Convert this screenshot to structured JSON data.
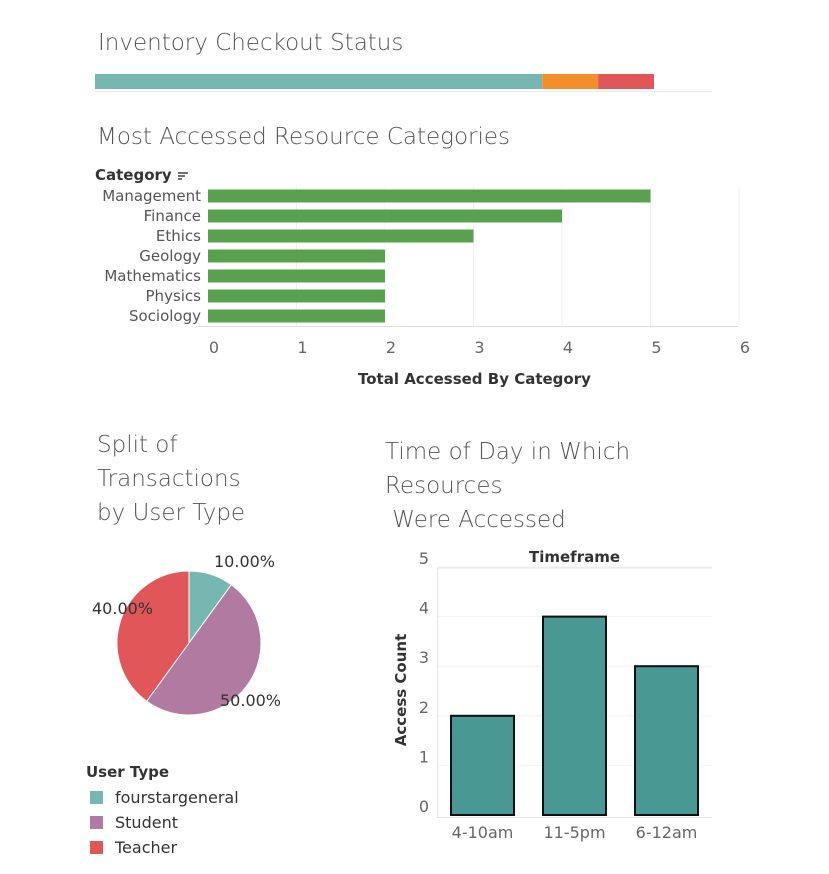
{
  "colors": {
    "teal": "#76b7b2",
    "orange": "#f28e2b",
    "red": "#e15759",
    "purple": "#b07aa1",
    "green": "#59a14f",
    "dark_teal": "#499894"
  },
  "inventory": {
    "title": "Inventory Checkout Status",
    "segments": [
      {
        "value": 0.8,
        "color": "#76b7b2"
      },
      {
        "value": 0.1,
        "color": "#f28e2b"
      },
      {
        "value": 0.1,
        "color": "#e15759"
      }
    ]
  },
  "categories_chart": {
    "title": "Most Accessed Resource Categories",
    "header": "Category",
    "xlabel": "Total Accessed By Category"
  },
  "pie": {
    "title_lines": [
      "Split of",
      "Transactions",
      "by User Type"
    ],
    "legend_title": "User Type"
  },
  "time_chart": {
    "title_lines": [
      "Time of Day in Which",
      "Resources",
      " Were Accessed"
    ],
    "header": "Timeframe",
    "ylabel": "Access Count"
  },
  "chart_data": [
    {
      "type": "bar",
      "orientation": "horizontal",
      "title": "Most Accessed Resource Categories",
      "categories": [
        "Management",
        "Finance",
        "Ethics",
        "Geology",
        "Mathematics",
        "Physics",
        "Sociology"
      ],
      "values": [
        5,
        4,
        3,
        2,
        2,
        2,
        2
      ],
      "xlabel": "Total Accessed By Category",
      "ylabel": "Category",
      "xlim": [
        0,
        6
      ],
      "xticks": [
        "0",
        "1",
        "2",
        "3",
        "4",
        "5",
        "6"
      ],
      "color": "#59a14f"
    },
    {
      "type": "pie",
      "title": "Split of Transactions by User Type",
      "labels": [
        "fourstargeneral",
        "Student",
        "Teacher"
      ],
      "values": [
        10,
        50,
        40
      ],
      "value_labels": [
        "10.00%",
        "50.00%",
        "40.00%"
      ],
      "colors": [
        "#76b7b2",
        "#b07aa1",
        "#e15759"
      ],
      "legend_title": "User Type",
      "legend": "bottom-left"
    },
    {
      "type": "bar",
      "title": "Time of Day in Which Resources Were Accessed",
      "categories": [
        "4-10am",
        "11-5pm",
        "6-12am"
      ],
      "values": [
        2,
        4,
        3
      ],
      "xlabel": "Timeframe",
      "ylabel": "Access Count",
      "ylim": [
        0,
        5
      ],
      "yticks": [
        "0",
        "1",
        "2",
        "3",
        "4",
        "5"
      ],
      "color": "#499894"
    }
  ]
}
